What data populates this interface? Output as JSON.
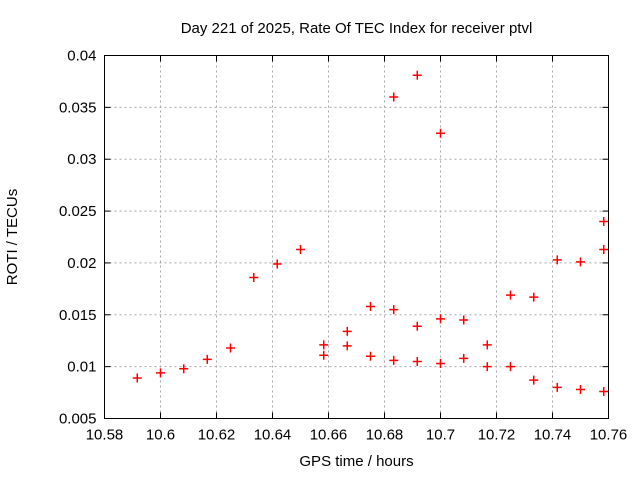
{
  "colors": {
    "background": "#ffffff",
    "axis": "#000000",
    "grid": "#a6a6a6",
    "marker": "#ff0000",
    "text": "#000000"
  },
  "chart_data": {
    "type": "scatter",
    "title": "Day 221 of 2025, Rate Of TEC Index for receiver ptvl",
    "xlabel": "GPS time / hours",
    "ylabel": "ROTI / TECUs",
    "xlim": [
      10.58,
      10.76
    ],
    "ylim": [
      0.005,
      0.04
    ],
    "xticks": [
      10.58,
      10.6,
      10.62,
      10.64,
      10.66,
      10.68,
      10.7,
      10.72,
      10.74,
      10.76
    ],
    "xtick_labels": [
      "10.58",
      "10.6",
      "10.62",
      "10.64",
      "10.66",
      "10.68",
      "10.7",
      "10.72",
      "10.74",
      "10.76"
    ],
    "yticks": [
      0.005,
      0.01,
      0.015,
      0.02,
      0.025,
      0.03,
      0.035,
      0.04
    ],
    "ytick_labels": [
      "0.005",
      "0.01",
      "0.015",
      "0.02",
      "0.025",
      "0.03",
      "0.035",
      "0.04"
    ],
    "grid": true,
    "legend": null,
    "marker": {
      "shape": "plus",
      "color": "#ff0000",
      "size": 9,
      "stroke_width": 1.5
    },
    "series": [
      {
        "name": "ROTI",
        "points": [
          [
            10.5917,
            0.0089
          ],
          [
            10.6,
            0.0094
          ],
          [
            10.6083,
            0.0098
          ],
          [
            10.6167,
            0.0107
          ],
          [
            10.625,
            0.0118
          ],
          [
            10.6333,
            0.0186
          ],
          [
            10.6417,
            0.0199
          ],
          [
            10.65,
            0.0213
          ],
          [
            10.6583,
            0.0121
          ],
          [
            10.6583,
            0.0111
          ],
          [
            10.6667,
            0.0134
          ],
          [
            10.6667,
            0.012
          ],
          [
            10.675,
            0.0158
          ],
          [
            10.675,
            0.011
          ],
          [
            10.6833,
            0.036
          ],
          [
            10.6833,
            0.0155
          ],
          [
            10.6833,
            0.0106
          ],
          [
            10.6917,
            0.0381
          ],
          [
            10.6917,
            0.0139
          ],
          [
            10.6917,
            0.0105
          ],
          [
            10.7,
            0.0325
          ],
          [
            10.7,
            0.0146
          ],
          [
            10.7,
            0.0103
          ],
          [
            10.7083,
            0.0145
          ],
          [
            10.7083,
            0.0108
          ],
          [
            10.7167,
            0.0121
          ],
          [
            10.7167,
            0.01
          ],
          [
            10.725,
            0.0169
          ],
          [
            10.725,
            0.01
          ],
          [
            10.7333,
            0.0167
          ],
          [
            10.7333,
            0.0087
          ],
          [
            10.7417,
            0.0203
          ],
          [
            10.7417,
            0.008
          ],
          [
            10.75,
            0.0201
          ],
          [
            10.75,
            0.0078
          ],
          [
            10.7583,
            0.024
          ],
          [
            10.7583,
            0.0213
          ],
          [
            10.7583,
            0.0076
          ]
        ]
      }
    ]
  }
}
